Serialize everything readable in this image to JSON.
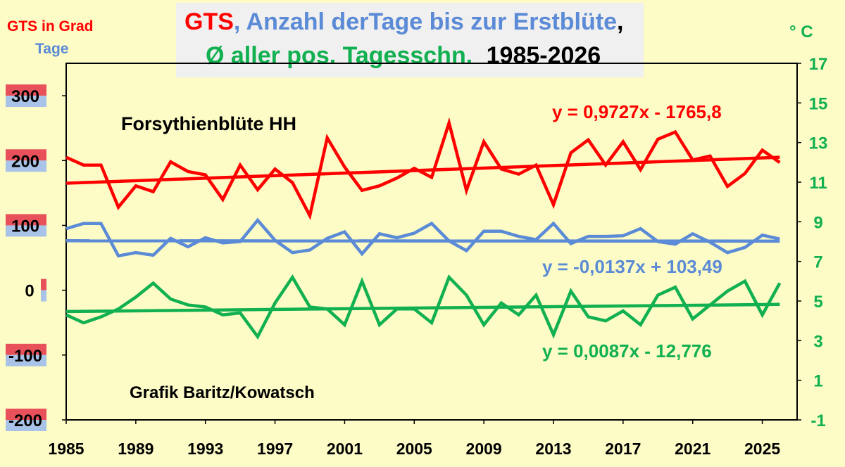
{
  "title": {
    "part1": "GTS",
    "part2": ", Anzahl derTage bis zur Erstblüte",
    "part3": ",",
    "part4": "Ø aller pos. Tagesschn.",
    "part5": "1985-2026"
  },
  "left_axis_label_gts": "GTS in Grad",
  "left_axis_label_tage": "Tage",
  "right_axis_label": "° C",
  "annotation_forsythie": "Forsythienblüte HH",
  "annotation_grafik": "Grafik Baritz/Kowatsch",
  "colors": {
    "gts": "#ff0000",
    "tage": "#5b8ad6",
    "temp": "#11b050",
    "background": "#fdfcc6",
    "title_box": "#f0f0f0"
  },
  "chart_data": {
    "type": "line",
    "x_ticks": [
      "1985",
      "1989",
      "1993",
      "1997",
      "2001",
      "2005",
      "2009",
      "2013",
      "2017",
      "2021",
      "2025"
    ],
    "y_left_ticks": [
      "300",
      "200",
      "100",
      "0",
      "-100",
      "-200"
    ],
    "y_right_ticks": [
      "17",
      "15",
      "13",
      "11",
      "9",
      "7",
      "5",
      "3",
      "1",
      "-1"
    ],
    "xlim": [
      1985,
      2027
    ],
    "ylim_left": [
      -200,
      350
    ],
    "ylim_right": [
      -1,
      17
    ],
    "grid": false,
    "series": [
      {
        "name": "GTS",
        "axis": "left",
        "color": "#ff0000",
        "x": [
          1985,
          1986,
          1987,
          1988,
          1989,
          1990,
          1991,
          1992,
          1993,
          1994,
          1995,
          1996,
          1997,
          1998,
          1999,
          2000,
          2001,
          2002,
          2003,
          2004,
          2005,
          2006,
          2007,
          2008,
          2009,
          2010,
          2011,
          2012,
          2013,
          2014,
          2015,
          2016,
          2017,
          2018,
          2019,
          2020,
          2021,
          2022,
          2023,
          2024,
          2025,
          2026
        ],
        "values": [
          205,
          193,
          193,
          128,
          161,
          152,
          198,
          183,
          178,
          140,
          193,
          155,
          187,
          166,
          115,
          235,
          190,
          154,
          161,
          173,
          188,
          174,
          258,
          154,
          229,
          187,
          179,
          193,
          132,
          212,
          232,
          193,
          229,
          186,
          233,
          244,
          201,
          207,
          160,
          180,
          216,
          197
        ],
        "trend": {
          "label": "y = 0,9727x - 1765,8",
          "start": 165,
          "end": 205
        }
      },
      {
        "name": "Tage",
        "axis": "left",
        "values": [
          95,
          103,
          103,
          53,
          58,
          54,
          80,
          67,
          81,
          73,
          75,
          108,
          77,
          58,
          62,
          80,
          90,
          56,
          87,
          81,
          88,
          103,
          76,
          61,
          91,
          91,
          83,
          78,
          103,
          72,
          83,
          83,
          84,
          95,
          75,
          71,
          87,
          74,
          58,
          66,
          85,
          79
        ],
        "x": [
          1985,
          1986,
          1987,
          1988,
          1989,
          1990,
          1991,
          1992,
          1993,
          1994,
          1995,
          1996,
          1997,
          1998,
          1999,
          2000,
          2001,
          2002,
          2003,
          2004,
          2005,
          2006,
          2007,
          2008,
          2009,
          2010,
          2011,
          2012,
          2013,
          2014,
          2015,
          2016,
          2017,
          2018,
          2019,
          2020,
          2021,
          2022,
          2023,
          2024,
          2025,
          2026
        ],
        "color": "#5b8ad6",
        "trend": {
          "label": "y = -0,0137x + 103,49",
          "start": 76.3,
          "end": 75.7
        }
      },
      {
        "name": "Ø aller pos. Tagesschn.",
        "axis": "right",
        "color": "#11b050",
        "x": [
          1985,
          1986,
          1987,
          1988,
          1989,
          1990,
          1991,
          1992,
          1993,
          1994,
          1995,
          1996,
          1997,
          1998,
          1999,
          2000,
          2001,
          2002,
          2003,
          2004,
          2005,
          2006,
          2007,
          2008,
          2009,
          2010,
          2011,
          2012,
          2013,
          2014,
          2015,
          2016,
          2017,
          2018,
          2019,
          2020,
          2021,
          2022,
          2023,
          2024,
          2025,
          2026
        ],
        "values": [
          4.3,
          3.9,
          4.2,
          4.6,
          5.2,
          5.9,
          5.1,
          4.8,
          4.7,
          4.3,
          4.4,
          3.2,
          4.9,
          6.2,
          4.7,
          4.6,
          3.8,
          6.0,
          3.8,
          4.6,
          4.6,
          3.9,
          6.2,
          5.3,
          3.8,
          4.9,
          4.3,
          5.3,
          3.3,
          5.5,
          4.2,
          4.0,
          4.5,
          3.8,
          5.3,
          5.7,
          4.1,
          4.8,
          5.5,
          6.0,
          4.3,
          5.9
        ],
        "trend": {
          "label": "y = 0,0087x - 12,776",
          "start": 4.47,
          "end": 4.83
        }
      }
    ]
  }
}
